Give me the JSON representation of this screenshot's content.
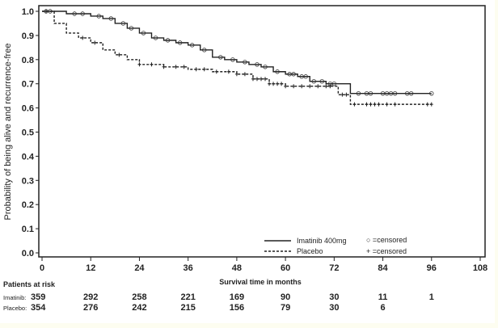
{
  "chart_data": {
    "type": "line",
    "title": "",
    "xlabel": "Survival time in months",
    "ylabel": "Probability of being alive and recurrence-free",
    "xlim": [
      0,
      108
    ],
    "ylim": [
      0,
      1.0
    ],
    "xticks": [
      "0",
      "12",
      "24",
      "36",
      "48",
      "60",
      "72",
      "84",
      "96",
      "108"
    ],
    "yticks": [
      "0.0",
      "0.1",
      "0.2",
      "0.3",
      "0.4",
      "0.5",
      "0.6",
      "0.7",
      "0.8",
      "0.9",
      "1.0"
    ],
    "grid": false,
    "legend_position": "bottom-right",
    "series": [
      {
        "name": "Imatinib 400mg",
        "style": "solid",
        "censor_marker": "circle",
        "points": [
          [
            0,
            1.0
          ],
          [
            3,
            1.0
          ],
          [
            6,
            0.99
          ],
          [
            12,
            0.98
          ],
          [
            15,
            0.97
          ],
          [
            18,
            0.95
          ],
          [
            21,
            0.93
          ],
          [
            24,
            0.91
          ],
          [
            27,
            0.89
          ],
          [
            30,
            0.88
          ],
          [
            33,
            0.87
          ],
          [
            36,
            0.86
          ],
          [
            39,
            0.84
          ],
          [
            42,
            0.81
          ],
          [
            45,
            0.8
          ],
          [
            48,
            0.79
          ],
          [
            51,
            0.78
          ],
          [
            54,
            0.77
          ],
          [
            57,
            0.75
          ],
          [
            60,
            0.74
          ],
          [
            63,
            0.73
          ],
          [
            66,
            0.71
          ],
          [
            70,
            0.7
          ],
          [
            76,
            0.7
          ],
          [
            76,
            0.66
          ],
          [
            96,
            0.66
          ]
        ],
        "censored": [
          1,
          2,
          8,
          10,
          14,
          17,
          20,
          22,
          25,
          28,
          31,
          34,
          37,
          40,
          44,
          47,
          50,
          53,
          55,
          58,
          61,
          62,
          64,
          65,
          67,
          69,
          71,
          72,
          78,
          80,
          81,
          84,
          85,
          86,
          87,
          90,
          91,
          96
        ]
      },
      {
        "name": "Placebo",
        "style": "dashed",
        "censor_marker": "plus",
        "points": [
          [
            0,
            1.0
          ],
          [
            2,
            1.0
          ],
          [
            3,
            0.95
          ],
          [
            6,
            0.91
          ],
          [
            9,
            0.89
          ],
          [
            12,
            0.87
          ],
          [
            15,
            0.84
          ],
          [
            18,
            0.82
          ],
          [
            21,
            0.8
          ],
          [
            24,
            0.78
          ],
          [
            30,
            0.77
          ],
          [
            36,
            0.76
          ],
          [
            42,
            0.75
          ],
          [
            48,
            0.74
          ],
          [
            52,
            0.72
          ],
          [
            56,
            0.7
          ],
          [
            60,
            0.69
          ],
          [
            72,
            0.69
          ],
          [
            73,
            0.655
          ],
          [
            76,
            0.655
          ],
          [
            76,
            0.615
          ],
          [
            96,
            0.615
          ]
        ],
        "censored": [
          1,
          10,
          13,
          19,
          24,
          27,
          30,
          33,
          35,
          38,
          40,
          43,
          46,
          48,
          50,
          52,
          53,
          54,
          55,
          56,
          57,
          58,
          59,
          60,
          62,
          64,
          66,
          68,
          70,
          71,
          74,
          75,
          77,
          80,
          81,
          82,
          83,
          85,
          87,
          95,
          96
        ]
      }
    ],
    "legend": {
      "series_labels": [
        "Imatinib 400mg",
        "Placebo"
      ],
      "censor_labels": [
        "○ =censored",
        "+ =censored"
      ]
    },
    "risk_table": {
      "title": "Patients at risk",
      "rows": [
        {
          "label": "Imatinib:",
          "values": [
            "359",
            "292",
            "258",
            "221",
            "169",
            "90",
            "30",
            "11",
            "1"
          ]
        },
        {
          "label": "Placebo:",
          "values": [
            "354",
            "276",
            "242",
            "215",
            "156",
            "79",
            "30",
            "6"
          ]
        }
      ]
    }
  }
}
